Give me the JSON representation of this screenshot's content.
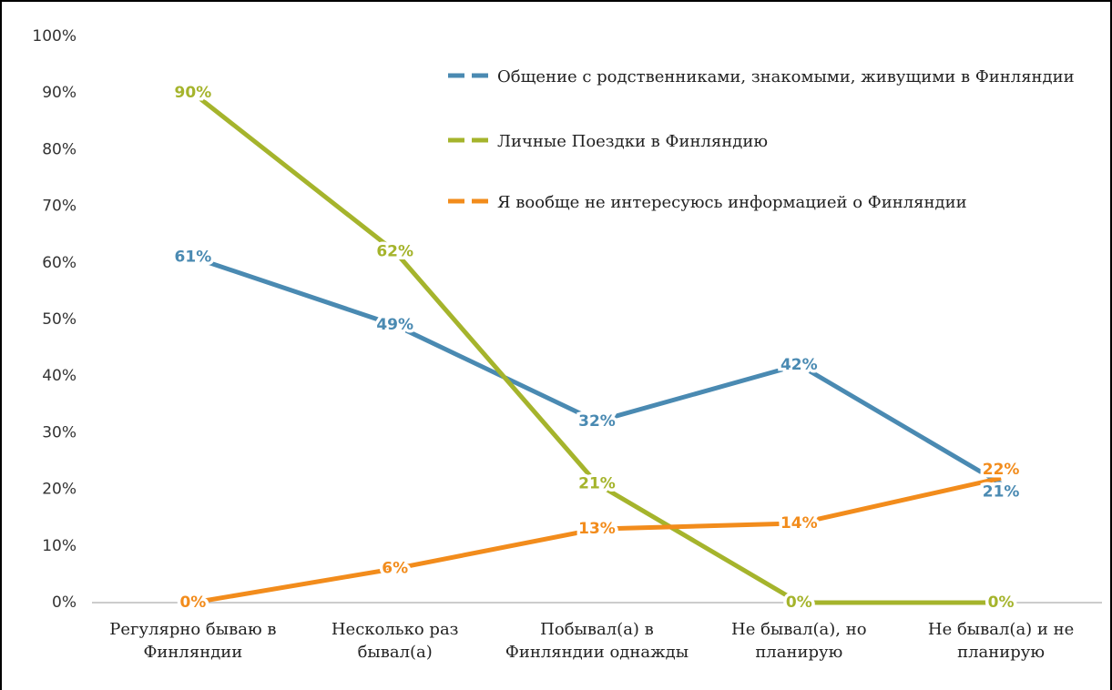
{
  "chart_data": {
    "type": "line",
    "categories": [
      "Регулярно бываю в Финляндии",
      "Несколько раз бывал(а)",
      "Побывал(а) в Финляндии однажды",
      "Не бывал(а), но планирую",
      "Не бывал(а) и не планирую"
    ],
    "series": [
      {
        "name": "Общение с родственниками, знакомыми, живущими в Финляндии",
        "color": "#4a8ab2",
        "values": [
          61,
          49,
          32,
          42,
          21
        ],
        "value_labels": [
          "61%",
          "49%",
          "32%",
          "42%",
          "21%"
        ]
      },
      {
        "name": "Личные Поездки в Финляндию",
        "color": "#a5b42c",
        "values": [
          90,
          62,
          21,
          0,
          0
        ],
        "value_labels": [
          "90%",
          "62%",
          "21%",
          "0%",
          "0%"
        ]
      },
      {
        "name": "Я вообще не интересуюсь информацией о Финляндии",
        "color": "#f28c1c",
        "values": [
          0,
          6,
          13,
          14,
          22
        ],
        "value_labels": [
          "0%",
          "6%",
          "13%",
          "14%",
          "22%"
        ]
      }
    ],
    "ylim": [
      0,
      100
    ],
    "yticks": [
      {
        "value": 0,
        "label": "0%"
      },
      {
        "value": 10,
        "label": "10%"
      },
      {
        "value": 20,
        "label": "20%"
      },
      {
        "value": 30,
        "label": "30%"
      },
      {
        "value": 40,
        "label": "40%"
      },
      {
        "value": 50,
        "label": "50%"
      },
      {
        "value": 60,
        "label": "60%"
      },
      {
        "value": 70,
        "label": "70%"
      },
      {
        "value": 80,
        "label": "80%"
      },
      {
        "value": 90,
        "label": "90%"
      },
      {
        "value": 100,
        "label": "100%"
      }
    ],
    "grid": false
  }
}
